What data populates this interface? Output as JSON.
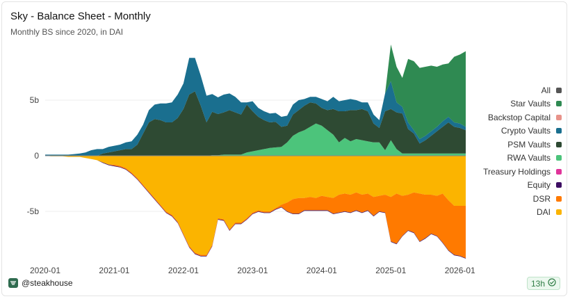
{
  "header": {
    "title": "Sky - Balance Sheet - Monthly",
    "subtitle": "Monthly BS since 2020, in DAI"
  },
  "footer": {
    "brand": "@steakhouse",
    "badge": "13h"
  },
  "chart_data": {
    "type": "area",
    "title": "Sky - Balance Sheet - Monthly",
    "subtitle": "Monthly BS since 2020, in DAI",
    "xlabel": "",
    "ylabel": "",
    "ylim": [
      -10,
      10
    ],
    "yticks": [
      {
        "value": 5,
        "label": "5b"
      },
      {
        "value": 0,
        "label": "0"
      },
      {
        "value": -5,
        "label": "-5b"
      }
    ],
    "xticks": [
      {
        "value": 0,
        "label": "2020-01"
      },
      {
        "value": 12,
        "label": "2021-01"
      },
      {
        "value": 24,
        "label": "2022-01"
      },
      {
        "value": 36,
        "label": "2023-01"
      },
      {
        "value": 48,
        "label": "2024-01"
      },
      {
        "value": 60,
        "label": "2025-01"
      },
      {
        "value": 72,
        "label": "2026-01"
      }
    ],
    "x_range": [
      0,
      73
    ],
    "legend": [
      "All",
      "Star Vaults",
      "Backstop Capital",
      "Crypto Vaults",
      "PSM Vaults",
      "RWA Vaults",
      "Treasury Holdings",
      "Equity",
      "DSR",
      "DAI"
    ],
    "legend_position": "right",
    "assets": [
      {
        "name": "RWA Vaults",
        "color": "#4cc47b",
        "values": [
          0.0,
          0.0,
          0.0,
          0.0,
          0.0,
          0.0,
          0.0,
          0.0,
          0.0,
          0.0,
          0.0,
          0.0,
          0.0,
          0.0,
          0.0,
          0.0,
          0.0,
          0.0,
          0.0,
          0.0,
          0.0,
          0.0,
          0.0,
          0.0,
          0.0,
          0.0,
          0.0,
          0.0,
          0.0,
          0.05,
          0.05,
          0.1,
          0.1,
          0.1,
          0.1,
          0.3,
          0.4,
          0.5,
          0.6,
          0.7,
          0.75,
          0.8,
          1.2,
          1.8,
          2.1,
          2.3,
          2.6,
          2.9,
          2.7,
          2.3,
          1.9,
          1.2,
          1.6,
          1.3,
          1.5,
          1.4,
          1.3,
          1.2,
          1.2,
          0.5,
          1.4,
          0.6,
          0.2,
          0.2,
          0.2,
          0.2,
          0.2,
          0.2,
          0.2,
          0.2,
          0.2,
          0.2,
          0.2,
          0.2
        ]
      },
      {
        "name": "PSM Vaults",
        "color": "#2e4a33",
        "values": [
          0.0,
          0.0,
          0.0,
          0.0,
          0.0,
          0.0,
          0.0,
          0.0,
          0.0,
          0.0,
          0.2,
          0.3,
          0.4,
          0.5,
          0.6,
          0.6,
          1.0,
          2.0,
          3.0,
          3.3,
          3.2,
          3.0,
          3.0,
          3.4,
          4.2,
          5.5,
          5.8,
          4.5,
          3.0,
          3.9,
          3.7,
          3.8,
          4.0,
          3.8,
          3.6,
          4.3,
          3.6,
          3.0,
          2.6,
          2.3,
          2.3,
          1.8,
          1.5,
          1.9,
          2.0,
          2.2,
          2.2,
          1.8,
          1.6,
          1.8,
          2.3,
          2.8,
          2.4,
          2.8,
          2.6,
          2.8,
          2.7,
          1.7,
          1.3,
          3.5,
          2.8,
          3.3,
          3.6,
          2.2,
          1.8,
          0.9,
          1.2,
          1.6,
          2.0,
          2.4,
          2.8,
          2.4,
          2.3,
          2.1
        ]
      },
      {
        "name": "Crypto Vaults",
        "color": "#1a6f8f",
        "values": [
          0.1,
          0.1,
          0.1,
          0.1,
          0.1,
          0.15,
          0.2,
          0.3,
          0.5,
          0.6,
          0.4,
          0.5,
          0.5,
          0.5,
          0.6,
          0.7,
          0.9,
          0.8,
          1.1,
          1.3,
          1.5,
          1.7,
          1.8,
          2.1,
          2.3,
          3.3,
          3.0,
          2.7,
          2.4,
          1.6,
          1.5,
          1.6,
          1.5,
          1.4,
          1.1,
          0.2,
          0.9,
          0.8,
          0.8,
          0.8,
          0.8,
          0.9,
          0.9,
          0.9,
          0.9,
          0.6,
          0.5,
          0.6,
          0.8,
          0.8,
          1.1,
          0.9,
          1.0,
          1.0,
          0.9,
          0.6,
          0.8,
          0.8,
          0.7,
          1.6,
          2.5,
          0.9,
          0.6,
          0.6,
          0.3,
          0.4,
          0.4,
          0.4,
          0.4,
          0.5,
          0.5,
          0.4,
          0.4,
          0.3
        ]
      },
      {
        "name": "Backstop Capital",
        "color": "#e8938a",
        "values": [
          0.0,
          0.0,
          0.0,
          0.0,
          0.0,
          0.0,
          0.0,
          0.0,
          0.0,
          0.0,
          0.0,
          0.0,
          0.0,
          0.0,
          0.0,
          0.0,
          0.0,
          0.0,
          0.0,
          0.0,
          0.0,
          0.0,
          0.0,
          0.0,
          0.0,
          0.0,
          0.0,
          0.0,
          0.0,
          0.0,
          0.0,
          0.0,
          0.0,
          0.0,
          0.0,
          0.0,
          0.0,
          0.0,
          0.0,
          0.0,
          0.0,
          0.0,
          0.0,
          0.0,
          0.0,
          0.0,
          0.0,
          0.0,
          0.0,
          0.0,
          0.0,
          0.0,
          0.0,
          0.0,
          0.0,
          0.0,
          0.0,
          0.0,
          0.0,
          0.0,
          0.0,
          0.0,
          0.0,
          0.0,
          0.0,
          0.0,
          0.0,
          0.0,
          0.0,
          0.0,
          0.0,
          0.0,
          0.0,
          0.0
        ]
      },
      {
        "name": "Star Vaults",
        "color": "#2f8a52",
        "values": [
          0.0,
          0.0,
          0.0,
          0.0,
          0.0,
          0.0,
          0.0,
          0.0,
          0.0,
          0.0,
          0.0,
          0.0,
          0.0,
          0.0,
          0.0,
          0.0,
          0.0,
          0.0,
          0.0,
          0.0,
          0.0,
          0.0,
          0.0,
          0.0,
          0.0,
          0.0,
          0.0,
          0.0,
          0.0,
          0.0,
          0.0,
          0.0,
          0.0,
          0.0,
          0.0,
          0.0,
          0.0,
          0.0,
          0.0,
          0.0,
          0.0,
          0.0,
          0.0,
          0.0,
          0.0,
          0.0,
          0.0,
          0.0,
          0.0,
          0.0,
          0.0,
          0.0,
          0.0,
          0.0,
          0.0,
          0.0,
          0.0,
          0.0,
          0.0,
          0.0,
          3.3,
          3.2,
          2.6,
          5.7,
          6.2,
          6.4,
          6.2,
          5.9,
          5.4,
          5.1,
          4.8,
          5.9,
          6.2,
          6.8
        ]
      }
    ],
    "liabilities": [
      {
        "name": "DAI",
        "color": "#fbb400",
        "values": [
          0.0,
          -0.05,
          -0.05,
          -0.05,
          -0.1,
          -0.1,
          -0.1,
          -0.2,
          -0.3,
          -0.4,
          -0.6,
          -0.8,
          -0.8,
          -0.9,
          -1.1,
          -1.5,
          -2.0,
          -2.6,
          -3.2,
          -3.8,
          -4.4,
          -5.0,
          -5.3,
          -5.9,
          -7.0,
          -8.1,
          -8.7,
          -8.9,
          -8.9,
          -8.0,
          -5.6,
          -5.7,
          -6.6,
          -6.0,
          -6.0,
          -5.6,
          -5.1,
          -4.9,
          -5.0,
          -5.0,
          -4.7,
          -4.4,
          -4.2,
          -3.9,
          -3.8,
          -3.8,
          -3.7,
          -3.8,
          -3.6,
          -3.7,
          -3.8,
          -3.5,
          -3.4,
          -3.5,
          -3.3,
          -3.5,
          -3.4,
          -3.7,
          -3.6,
          -3.5,
          -3.7,
          -3.4,
          -3.6,
          -3.5,
          -3.3,
          -3.4,
          -3.5,
          -3.5,
          -3.6,
          -3.4,
          -4.0,
          -4.5,
          -4.5,
          -4.5
        ]
      },
      {
        "name": "DSR",
        "color": "#ff7a00",
        "values": [
          0.0,
          0.0,
          0.0,
          0.0,
          0.0,
          0.0,
          0.0,
          0.0,
          0.0,
          0.0,
          0.0,
          0.0,
          -0.1,
          -0.1,
          -0.1,
          -0.1,
          -0.1,
          -0.1,
          -0.1,
          -0.1,
          -0.1,
          -0.1,
          -0.1,
          -0.1,
          -0.1,
          -0.1,
          -0.1,
          -0.1,
          -0.1,
          -0.1,
          -0.1,
          -0.1,
          -0.1,
          -0.1,
          -0.1,
          -0.1,
          -0.1,
          -0.1,
          -0.1,
          -0.1,
          -0.1,
          -0.2,
          -0.8,
          -1.3,
          -1.4,
          -1.1,
          -1.2,
          -1.1,
          -1.3,
          -1.2,
          -1.4,
          -1.6,
          -1.6,
          -1.6,
          -1.6,
          -1.6,
          -1.5,
          -1.7,
          -1.4,
          -1.6,
          -4.0,
          -4.5,
          -3.6,
          -3.2,
          -3.6,
          -4.3,
          -3.9,
          -3.5,
          -3.6,
          -4.4,
          -4.5,
          -4.4,
          -4.5,
          -4.7
        ]
      },
      {
        "name": "Equity",
        "color": "#3d0e63",
        "values": [
          0.0,
          0.0,
          0.0,
          0.0,
          0.0,
          0.0,
          0.0,
          0.0,
          0.0,
          0.0,
          -0.05,
          -0.05,
          -0.05,
          -0.05,
          -0.05,
          -0.05,
          -0.05,
          -0.05,
          -0.05,
          -0.05,
          -0.05,
          -0.05,
          -0.05,
          -0.05,
          -0.05,
          -0.05,
          -0.05,
          -0.05,
          -0.05,
          -0.05,
          -0.05,
          -0.05,
          -0.05,
          -0.05,
          -0.05,
          -0.05,
          -0.05,
          -0.05,
          -0.05,
          -0.05,
          -0.05,
          -0.05,
          -0.05,
          -0.05,
          -0.05,
          -0.05,
          -0.05,
          -0.05,
          -0.05,
          -0.05,
          -0.05,
          -0.05,
          -0.05,
          -0.05,
          -0.05,
          -0.05,
          -0.05,
          -0.05,
          -0.05,
          -0.05,
          -0.05,
          -0.05,
          -0.05,
          -0.05,
          -0.05,
          -0.05,
          -0.05,
          -0.05,
          -0.05,
          -0.05,
          -0.05,
          -0.05,
          -0.05,
          -0.05
        ]
      }
    ],
    "colors": {
      "All": "#555555",
      "Star Vaults": "#2f8a52",
      "Backstop Capital": "#e8938a",
      "Crypto Vaults": "#1a6f8f",
      "PSM Vaults": "#2e4a33",
      "RWA Vaults": "#4cc47b",
      "Treasury Holdings": "#e0349a",
      "Equity": "#3d0e63",
      "DSR": "#ff7a00",
      "DAI": "#fbb400"
    }
  }
}
